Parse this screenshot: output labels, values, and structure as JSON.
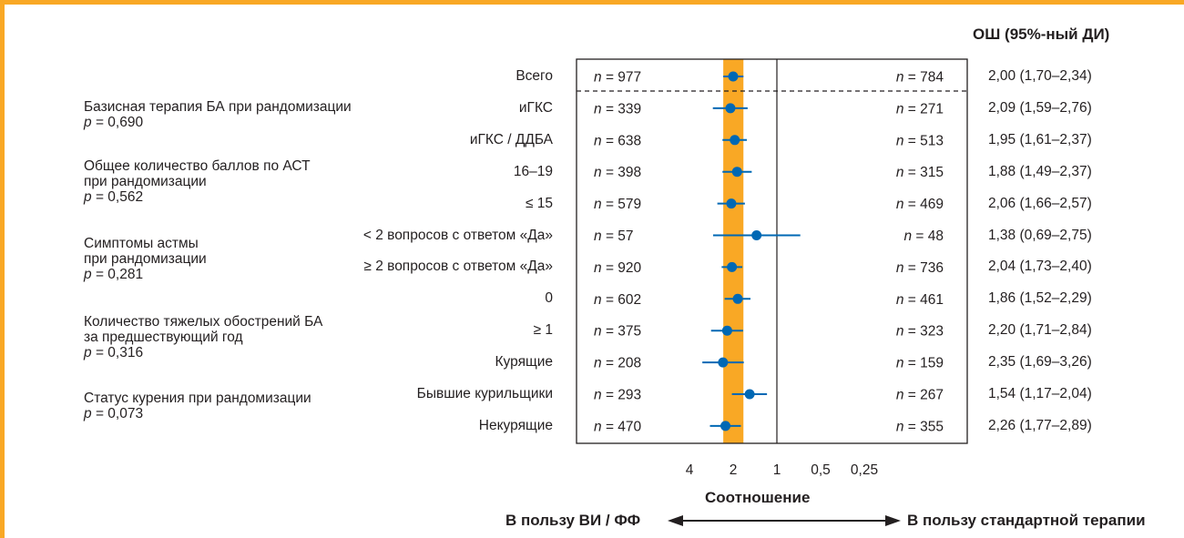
{
  "header": {
    "or_title": "ОШ (95%-ный ДИ)"
  },
  "groups": [
    {
      "title": [
        "Базисная терапия БА при рандомизации"
      ],
      "p": "= 0,690"
    },
    {
      "title": [
        "Общее количество баллов по АСТ",
        "при рандомизации"
      ],
      "p": "= 0,562"
    },
    {
      "title": [
        "Симптомы астмы",
        "при рандомизации"
      ],
      "p": "= 0,281"
    },
    {
      "title": [
        "Количество тяжелых обострений БА",
        "за предшествующий год"
      ],
      "p": "= 0,316"
    },
    {
      "title": [
        "Статус курения при рандомизации"
      ],
      "p": "= 0,073"
    }
  ],
  "chart_data": {
    "type": "forest",
    "x_scale": "log",
    "x_reversed": true,
    "xlabel": "Соотношение",
    "xticks": [
      4,
      2,
      1,
      0.5,
      0.25
    ],
    "xtick_labels": [
      "4",
      "2",
      "1",
      "0,5",
      "0,25"
    ],
    "reference_line": 1,
    "highlight_band": [
      1.7,
      2.34
    ],
    "rows": [
      {
        "label": "Всего",
        "n_left": "= 977",
        "n_right": "= 784",
        "or": 2.0,
        "lo": 1.7,
        "hi": 2.34,
        "or_text": "2,00 (1,70–2,34)"
      },
      {
        "label": "иГКС",
        "n_left": "= 339",
        "n_right": "= 271",
        "or": 2.09,
        "lo": 1.59,
        "hi": 2.76,
        "or_text": "2,09 (1,59–2,76)"
      },
      {
        "label": "иГКС / ДДБА",
        "n_left": "= 638",
        "n_right": "= 513",
        "or": 1.95,
        "lo": 1.61,
        "hi": 2.37,
        "or_text": "1,95 (1,61–2,37)"
      },
      {
        "label": "16–19",
        "n_left": "= 398",
        "n_right": "= 315",
        "or": 1.88,
        "lo": 1.49,
        "hi": 2.37,
        "or_text": "1,88 (1,49–2,37)"
      },
      {
        "label": "≤ 15",
        "n_left": "= 579",
        "n_right": "= 469",
        "or": 2.06,
        "lo": 1.66,
        "hi": 2.57,
        "or_text": "2,06 (1,66–2,57)"
      },
      {
        "label": "< 2 вопросов с ответом «Да»",
        "n_left": "= 57",
        "n_right": "= 48",
        "or": 1.38,
        "lo": 0.69,
        "hi": 2.75,
        "or_text": "1,38 (0,69–2,75)"
      },
      {
        "label": "≥ 2 вопросов с ответом «Да»",
        "n_left": "= 920",
        "n_right": "= 736",
        "or": 2.04,
        "lo": 1.73,
        "hi": 2.4,
        "or_text": "2,04 (1,73–2,40)"
      },
      {
        "label": "0",
        "n_left": "= 602",
        "n_right": "= 461",
        "or": 1.86,
        "lo": 1.52,
        "hi": 2.29,
        "or_text": "1,86 (1,52–2,29)"
      },
      {
        "label": "≥ 1",
        "n_left": "= 375",
        "n_right": "= 323",
        "or": 2.2,
        "lo": 1.71,
        "hi": 2.84,
        "or_text": "2,20 (1,71–2,84)"
      },
      {
        "label": "Курящие",
        "n_left": "= 208",
        "n_right": "= 159",
        "or": 2.35,
        "lo": 1.69,
        "hi": 3.26,
        "or_text": "2,35 (1,69–3,26)"
      },
      {
        "label": "Бывшие курильщики",
        "n_left": "= 293",
        "n_right": "= 267",
        "or": 1.54,
        "lo": 1.17,
        "hi": 2.04,
        "or_text": "1,54 (1,17–2,04)"
      },
      {
        "label": "Некурящие",
        "n_left": "= 470",
        "n_right": "= 355",
        "or": 2.26,
        "lo": 1.77,
        "hi": 2.89,
        "or_text": "2,26 (1,77–2,89)"
      }
    ]
  },
  "footer": {
    "left_text": "В пользу ВИ / ФФ",
    "right_text": "В пользу стандартной терапии"
  },
  "colors": {
    "frame": "#f9a825",
    "band": "#f9a825",
    "point": "#0068b4",
    "text": "#231f20"
  }
}
